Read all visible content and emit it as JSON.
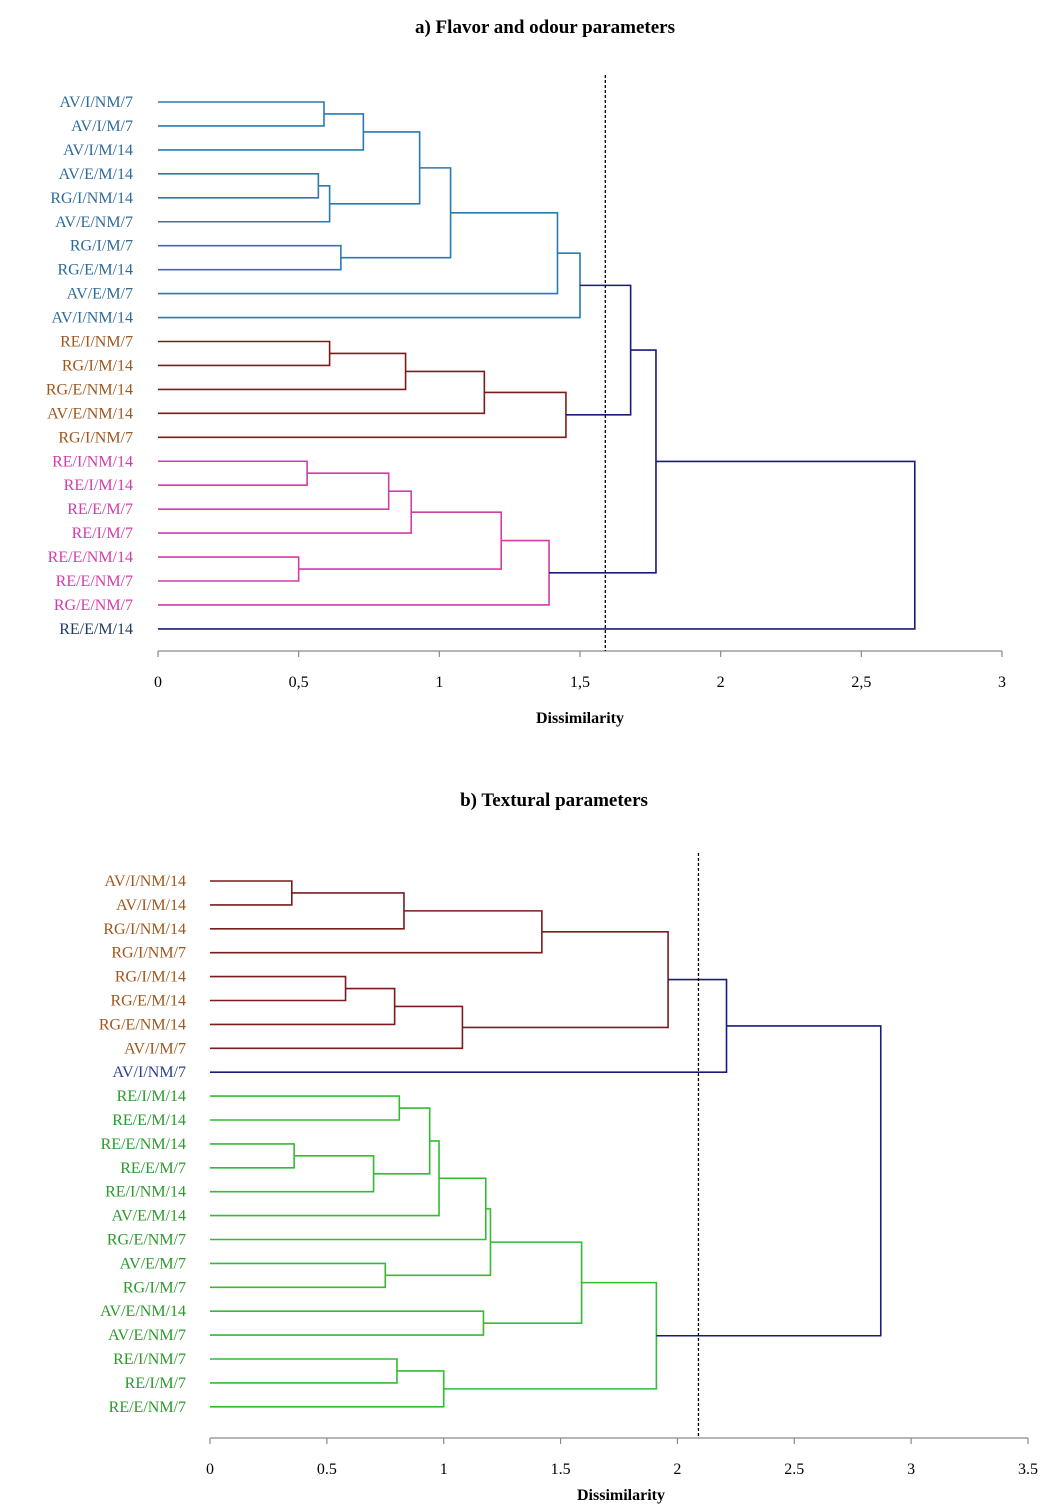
{
  "chart_data": [
    {
      "type": "dendrogram",
      "title": "a) Flavor and odour parameters",
      "xlabel": "Dissimilarity",
      "xlim": [
        0,
        3
      ],
      "xticks": [
        "0",
        "0,5",
        "1",
        "1,5",
        "2",
        "2,5",
        "3"
      ],
      "cutoff": 1.59,
      "leaves": [
        {
          "label": "AV/I/NM/7",
          "color": "#2e6b9a"
        },
        {
          "label": "AV/I/M/7",
          "color": "#2e6b9a"
        },
        {
          "label": "AV/I/M/14",
          "color": "#2e6b9a"
        },
        {
          "label": "AV/E/M/14",
          "color": "#2e6b9a"
        },
        {
          "label": "RG/I/NM/14",
          "color": "#2e6b9a"
        },
        {
          "label": "AV/E/NM/7",
          "color": "#2e6b9a"
        },
        {
          "label": "RG/I/M/7",
          "color": "#2e6b9a"
        },
        {
          "label": "RG/E/M/14",
          "color": "#2e6b9a"
        },
        {
          "label": "AV/E/M/7",
          "color": "#2e6b9a"
        },
        {
          "label": "AV/I/NM/14",
          "color": "#2e6b9a"
        },
        {
          "label": "RE/I/NM/7",
          "color": "#a0561c"
        },
        {
          "label": "RG/I/M/14",
          "color": "#a0561c"
        },
        {
          "label": "RG/E/NM/14",
          "color": "#a0561c"
        },
        {
          "label": "AV/E/NM/14",
          "color": "#a0561c"
        },
        {
          "label": "RG/I/NM/7",
          "color": "#a0561c"
        },
        {
          "label": "RE/I/NM/14",
          "color": "#d43ca8"
        },
        {
          "label": "RE/I/M/14",
          "color": "#d43ca8"
        },
        {
          "label": "RE/E/M/7",
          "color": "#d43ca8"
        },
        {
          "label": "RE/I/M/7",
          "color": "#d43ca8"
        },
        {
          "label": "RE/E/NM/14",
          "color": "#d43ca8"
        },
        {
          "label": "RE/E/NM/7",
          "color": "#d43ca8"
        },
        {
          "label": "RG/E/NM/7",
          "color": "#d43ca8"
        },
        {
          "label": "RE/E/M/14",
          "color": "#1f3a5f"
        }
      ],
      "merges": [
        {
          "a": "L0",
          "b": "L1",
          "h": 0.59,
          "color": "#2a7ab0"
        },
        {
          "a": "N0",
          "b": "L2",
          "h": 0.73,
          "color": "#2a7ab0"
        },
        {
          "a": "L3",
          "b": "L4",
          "h": 0.57,
          "color": "#2a7ab0"
        },
        {
          "a": "N2",
          "b": "L5",
          "h": 0.61,
          "color": "#2a7ab0"
        },
        {
          "a": "N1",
          "b": "N3",
          "h": 0.93,
          "color": "#2a7ab0"
        },
        {
          "a": "L6",
          "b": "L7",
          "h": 0.65,
          "color": "#2a7ab0"
        },
        {
          "a": "N4",
          "b": "N5",
          "h": 1.04,
          "color": "#2a7ab0"
        },
        {
          "a": "N6",
          "b": "L8",
          "h": 1.42,
          "color": "#2a7ab0"
        },
        {
          "a": "N7",
          "b": "L9",
          "h": 1.5,
          "color": "#2a7ab0"
        },
        {
          "a": "L10",
          "b": "L11",
          "h": 0.61,
          "color": "#7a1c1c"
        },
        {
          "a": "N9",
          "b": "L12",
          "h": 0.88,
          "color": "#7a1c1c"
        },
        {
          "a": "N10",
          "b": "L13",
          "h": 1.16,
          "color": "#7a1c1c"
        },
        {
          "a": "N11",
          "b": "L14",
          "h": 1.45,
          "color": "#7a1c1c"
        },
        {
          "a": "L15",
          "b": "L16",
          "h": 0.53,
          "color": "#d43ca8"
        },
        {
          "a": "N13",
          "b": "L17",
          "h": 0.82,
          "color": "#d43ca8"
        },
        {
          "a": "N14",
          "b": "L18",
          "h": 0.9,
          "color": "#d43ca8"
        },
        {
          "a": "L19",
          "b": "L20",
          "h": 0.5,
          "color": "#d43ca8"
        },
        {
          "a": "N15",
          "b": "N16",
          "h": 1.22,
          "color": "#d43ca8"
        },
        {
          "a": "N17",
          "b": "L21",
          "h": 1.39,
          "color": "#d43ca8"
        },
        {
          "a": "N8",
          "b": "N12",
          "h": 1.68,
          "color": "#1a1a7a"
        },
        {
          "a": "N19",
          "b": "N18",
          "h": 1.77,
          "color": "#1a1a7a"
        },
        {
          "a": "N20",
          "b": "L22",
          "h": 2.69,
          "color": "#1a1a7a"
        }
      ]
    },
    {
      "type": "dendrogram",
      "title": "b) Textural parameters",
      "xlabel": "Dissimilarity",
      "xlim": [
        0,
        3.5
      ],
      "xticks": [
        "0",
        "0.5",
        "1",
        "1.5",
        "2",
        "2.5",
        "3",
        "3.5"
      ],
      "cutoff": 2.09,
      "leaves": [
        {
          "label": "AV/I/NM/14",
          "color": "#a0561c"
        },
        {
          "label": "AV/I/M/14",
          "color": "#a0561c"
        },
        {
          "label": "RG/I/NM/14",
          "color": "#a0561c"
        },
        {
          "label": "RG/I/NM/7",
          "color": "#a0561c"
        },
        {
          "label": "RG/I/M/14",
          "color": "#a0561c"
        },
        {
          "label": "RG/E/M/14",
          "color": "#a0561c"
        },
        {
          "label": "RG/E/NM/14",
          "color": "#a0561c"
        },
        {
          "label": "AV/I/M/7",
          "color": "#a0561c"
        },
        {
          "label": "AV/I/NM/7",
          "color": "#2b3f8f"
        },
        {
          "label": "RE/I/M/14",
          "color": "#2a9a2a"
        },
        {
          "label": "RE/E/M/14",
          "color": "#2a9a2a"
        },
        {
          "label": "RE/E/NM/14",
          "color": "#2a9a2a"
        },
        {
          "label": "RE/E/M/7",
          "color": "#2a9a2a"
        },
        {
          "label": "RE/I/NM/14",
          "color": "#2a9a2a"
        },
        {
          "label": "AV/E/M/14",
          "color": "#2a9a2a"
        },
        {
          "label": "RG/E/NM/7",
          "color": "#2a9a2a"
        },
        {
          "label": "AV/E/M/7",
          "color": "#2a9a2a"
        },
        {
          "label": "RG/I/M/7",
          "color": "#2a9a2a"
        },
        {
          "label": "AV/E/NM/14",
          "color": "#2a9a2a"
        },
        {
          "label": "AV/E/NM/7",
          "color": "#2a9a2a"
        },
        {
          "label": "RE/I/NM/7",
          "color": "#2a9a2a"
        },
        {
          "label": "RE/I/M/7",
          "color": "#2a9a2a"
        },
        {
          "label": "RE/E/NM/7",
          "color": "#2a9a2a"
        }
      ],
      "merges": [
        {
          "a": "L0",
          "b": "L1",
          "h": 0.35,
          "color": "#7a1c1c"
        },
        {
          "a": "N0",
          "b": "L2",
          "h": 0.83,
          "color": "#7a1c1c"
        },
        {
          "a": "N1",
          "b": "L3",
          "h": 1.42,
          "color": "#7a1c1c"
        },
        {
          "a": "L4",
          "b": "L5",
          "h": 0.58,
          "color": "#7a1c1c"
        },
        {
          "a": "N3",
          "b": "L6",
          "h": 0.79,
          "color": "#7a1c1c"
        },
        {
          "a": "N4",
          "b": "L7",
          "h": 1.08,
          "color": "#7a1c1c"
        },
        {
          "a": "N2",
          "b": "N5",
          "h": 1.96,
          "color": "#7a1c1c"
        },
        {
          "a": "N6",
          "b": "L8",
          "h": 2.21,
          "color": "#1a1a7a"
        },
        {
          "a": "L9",
          "b": "L10",
          "h": 0.81,
          "color": "#33bb33"
        },
        {
          "a": "L11",
          "b": "L12",
          "h": 0.36,
          "color": "#33bb33"
        },
        {
          "a": "N9",
          "b": "L13",
          "h": 0.7,
          "color": "#33bb33"
        },
        {
          "a": "N8",
          "b": "N10",
          "h": 0.94,
          "color": "#33bb33"
        },
        {
          "a": "N11",
          "b": "L14",
          "h": 0.98,
          "color": "#33bb33"
        },
        {
          "a": "N12",
          "b": "L15",
          "h": 1.18,
          "color": "#33bb33"
        },
        {
          "a": "L16",
          "b": "L17",
          "h": 0.75,
          "color": "#33bb33"
        },
        {
          "a": "N13",
          "b": "N14",
          "h": 1.2,
          "color": "#33bb33"
        },
        {
          "a": "L18",
          "b": "L19",
          "h": 1.17,
          "color": "#33bb33"
        },
        {
          "a": "N15",
          "b": "N16",
          "h": 1.59,
          "color": "#33bb33"
        },
        {
          "a": "L20",
          "b": "L21",
          "h": 0.8,
          "color": "#33bb33"
        },
        {
          "a": "N18",
          "b": "L22",
          "h": 1.0,
          "color": "#33bb33"
        },
        {
          "a": "N17",
          "b": "N19",
          "h": 1.91,
          "color": "#33bb33"
        },
        {
          "a": "N7",
          "b": "N20",
          "h": 2.87,
          "color": "#1a1a7a"
        }
      ]
    }
  ]
}
